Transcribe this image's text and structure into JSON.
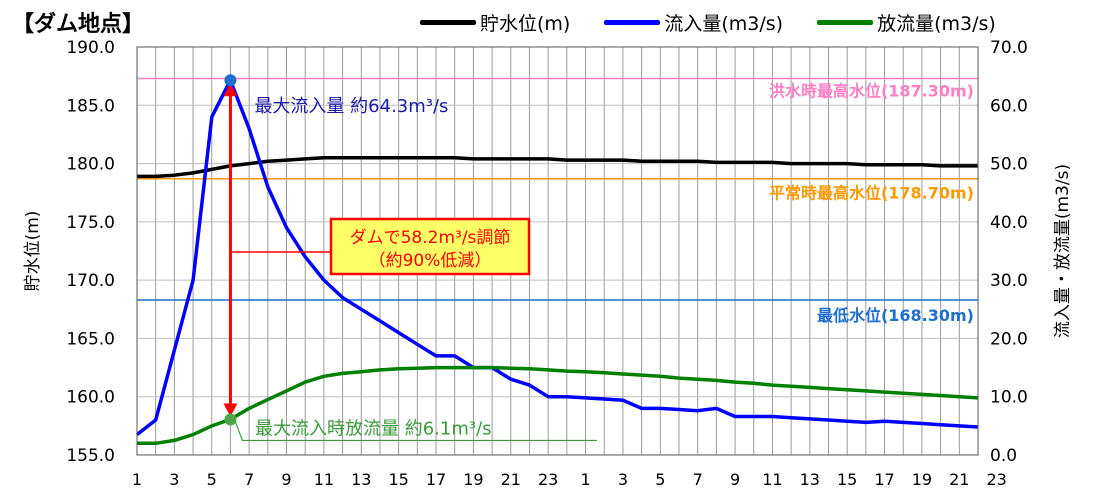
{
  "chart_data": {
    "type": "line",
    "title": "【ダム地点】",
    "ylabel_left": "貯水位(m)",
    "ylabel_right": "流入量・放流量(m3/s)",
    "xlabel": "",
    "ylim_left": [
      155.0,
      190.0
    ],
    "ylim_right": [
      0.0,
      70.0
    ],
    "y_ticks_left": [
      "155.0",
      "160.0",
      "165.0",
      "170.0",
      "175.0",
      "180.0",
      "185.0",
      "190.0"
    ],
    "y_ticks_right": [
      "0.0",
      "10.0",
      "20.0",
      "30.0",
      "40.0",
      "50.0",
      "60.0",
      "70.0"
    ],
    "x_tick_labels": [
      "1",
      "3",
      "5",
      "7",
      "9",
      "11",
      "13",
      "15",
      "17",
      "19",
      "21",
      "23",
      "1",
      "3",
      "5",
      "7",
      "9",
      "11",
      "13",
      "15",
      "17",
      "19",
      "21",
      "23"
    ],
    "grid": true,
    "legend_position": "top",
    "series": [
      {
        "name": "貯水位(m)",
        "axis": "left",
        "color": "#000000",
        "values": [
          178.9,
          178.9,
          179.0,
          179.2,
          179.5,
          179.8,
          180.0,
          180.2,
          180.3,
          180.4,
          180.5,
          180.5,
          180.5,
          180.5,
          180.5,
          180.5,
          180.5,
          180.5,
          180.4,
          180.4,
          180.4,
          180.4,
          180.4,
          180.3,
          180.3,
          180.3,
          180.3,
          180.2,
          180.2,
          180.2,
          180.2,
          180.1,
          180.1,
          180.1,
          180.1,
          180.0,
          180.0,
          180.0,
          180.0,
          179.9,
          179.9,
          179.9,
          179.9,
          179.8,
          179.8,
          179.8
        ]
      },
      {
        "name": "流入量(m3/s)",
        "axis": "right",
        "color": "#0000ff",
        "values": [
          3.5,
          6,
          18,
          30,
          58,
          64.3,
          56,
          46,
          39,
          34,
          30,
          27,
          25,
          23,
          21,
          19,
          17,
          17,
          15,
          15,
          13,
          12,
          10,
          10,
          9.8,
          9.6,
          9.4,
          8,
          8,
          7.8,
          7.6,
          8,
          6.6,
          6.6,
          6.6,
          6.4,
          6.2,
          6,
          5.8,
          5.6,
          5.8,
          5.6,
          5.4,
          5.2,
          5.0,
          4.8
        ]
      },
      {
        "name": "放流量(m3/s)",
        "axis": "right",
        "color": "#008000",
        "values": [
          2,
          2,
          2.5,
          3.5,
          5,
          6.1,
          8,
          9.5,
          11,
          12.5,
          13.5,
          14,
          14.3,
          14.6,
          14.8,
          14.9,
          15,
          15,
          15,
          15,
          14.9,
          14.8,
          14.6,
          14.4,
          14.3,
          14.1,
          13.9,
          13.7,
          13.5,
          13.2,
          13,
          12.8,
          12.5,
          12.3,
          12,
          11.8,
          11.6,
          11.4,
          11.2,
          11,
          10.8,
          10.6,
          10.4,
          10.2,
          10,
          9.8
        ]
      }
    ],
    "reference_lines": [
      {
        "label": "洪水時最高水位(187.30m)",
        "value": 187.3,
        "axis": "left",
        "color": "#ff7fc4"
      },
      {
        "label": "平常時最高水位(178.70m)",
        "value": 178.7,
        "axis": "left",
        "color": "#ff9900"
      },
      {
        "label": "最低水位(168.30m)",
        "value": 168.3,
        "axis": "left",
        "color": "#1f6fcf"
      }
    ],
    "annotations": {
      "peak_inflow": {
        "text": "最大流入量 約64.3m³/s",
        "x_index": 5,
        "value": 64.3
      },
      "peak_release": {
        "text": "最大流入時放流量 約6.1m³/s",
        "x_index": 5,
        "value": 6.1
      },
      "regulation_box": {
        "line1": "ダムで58.2m³/s調節",
        "line2": "（約90%低減）"
      }
    }
  }
}
